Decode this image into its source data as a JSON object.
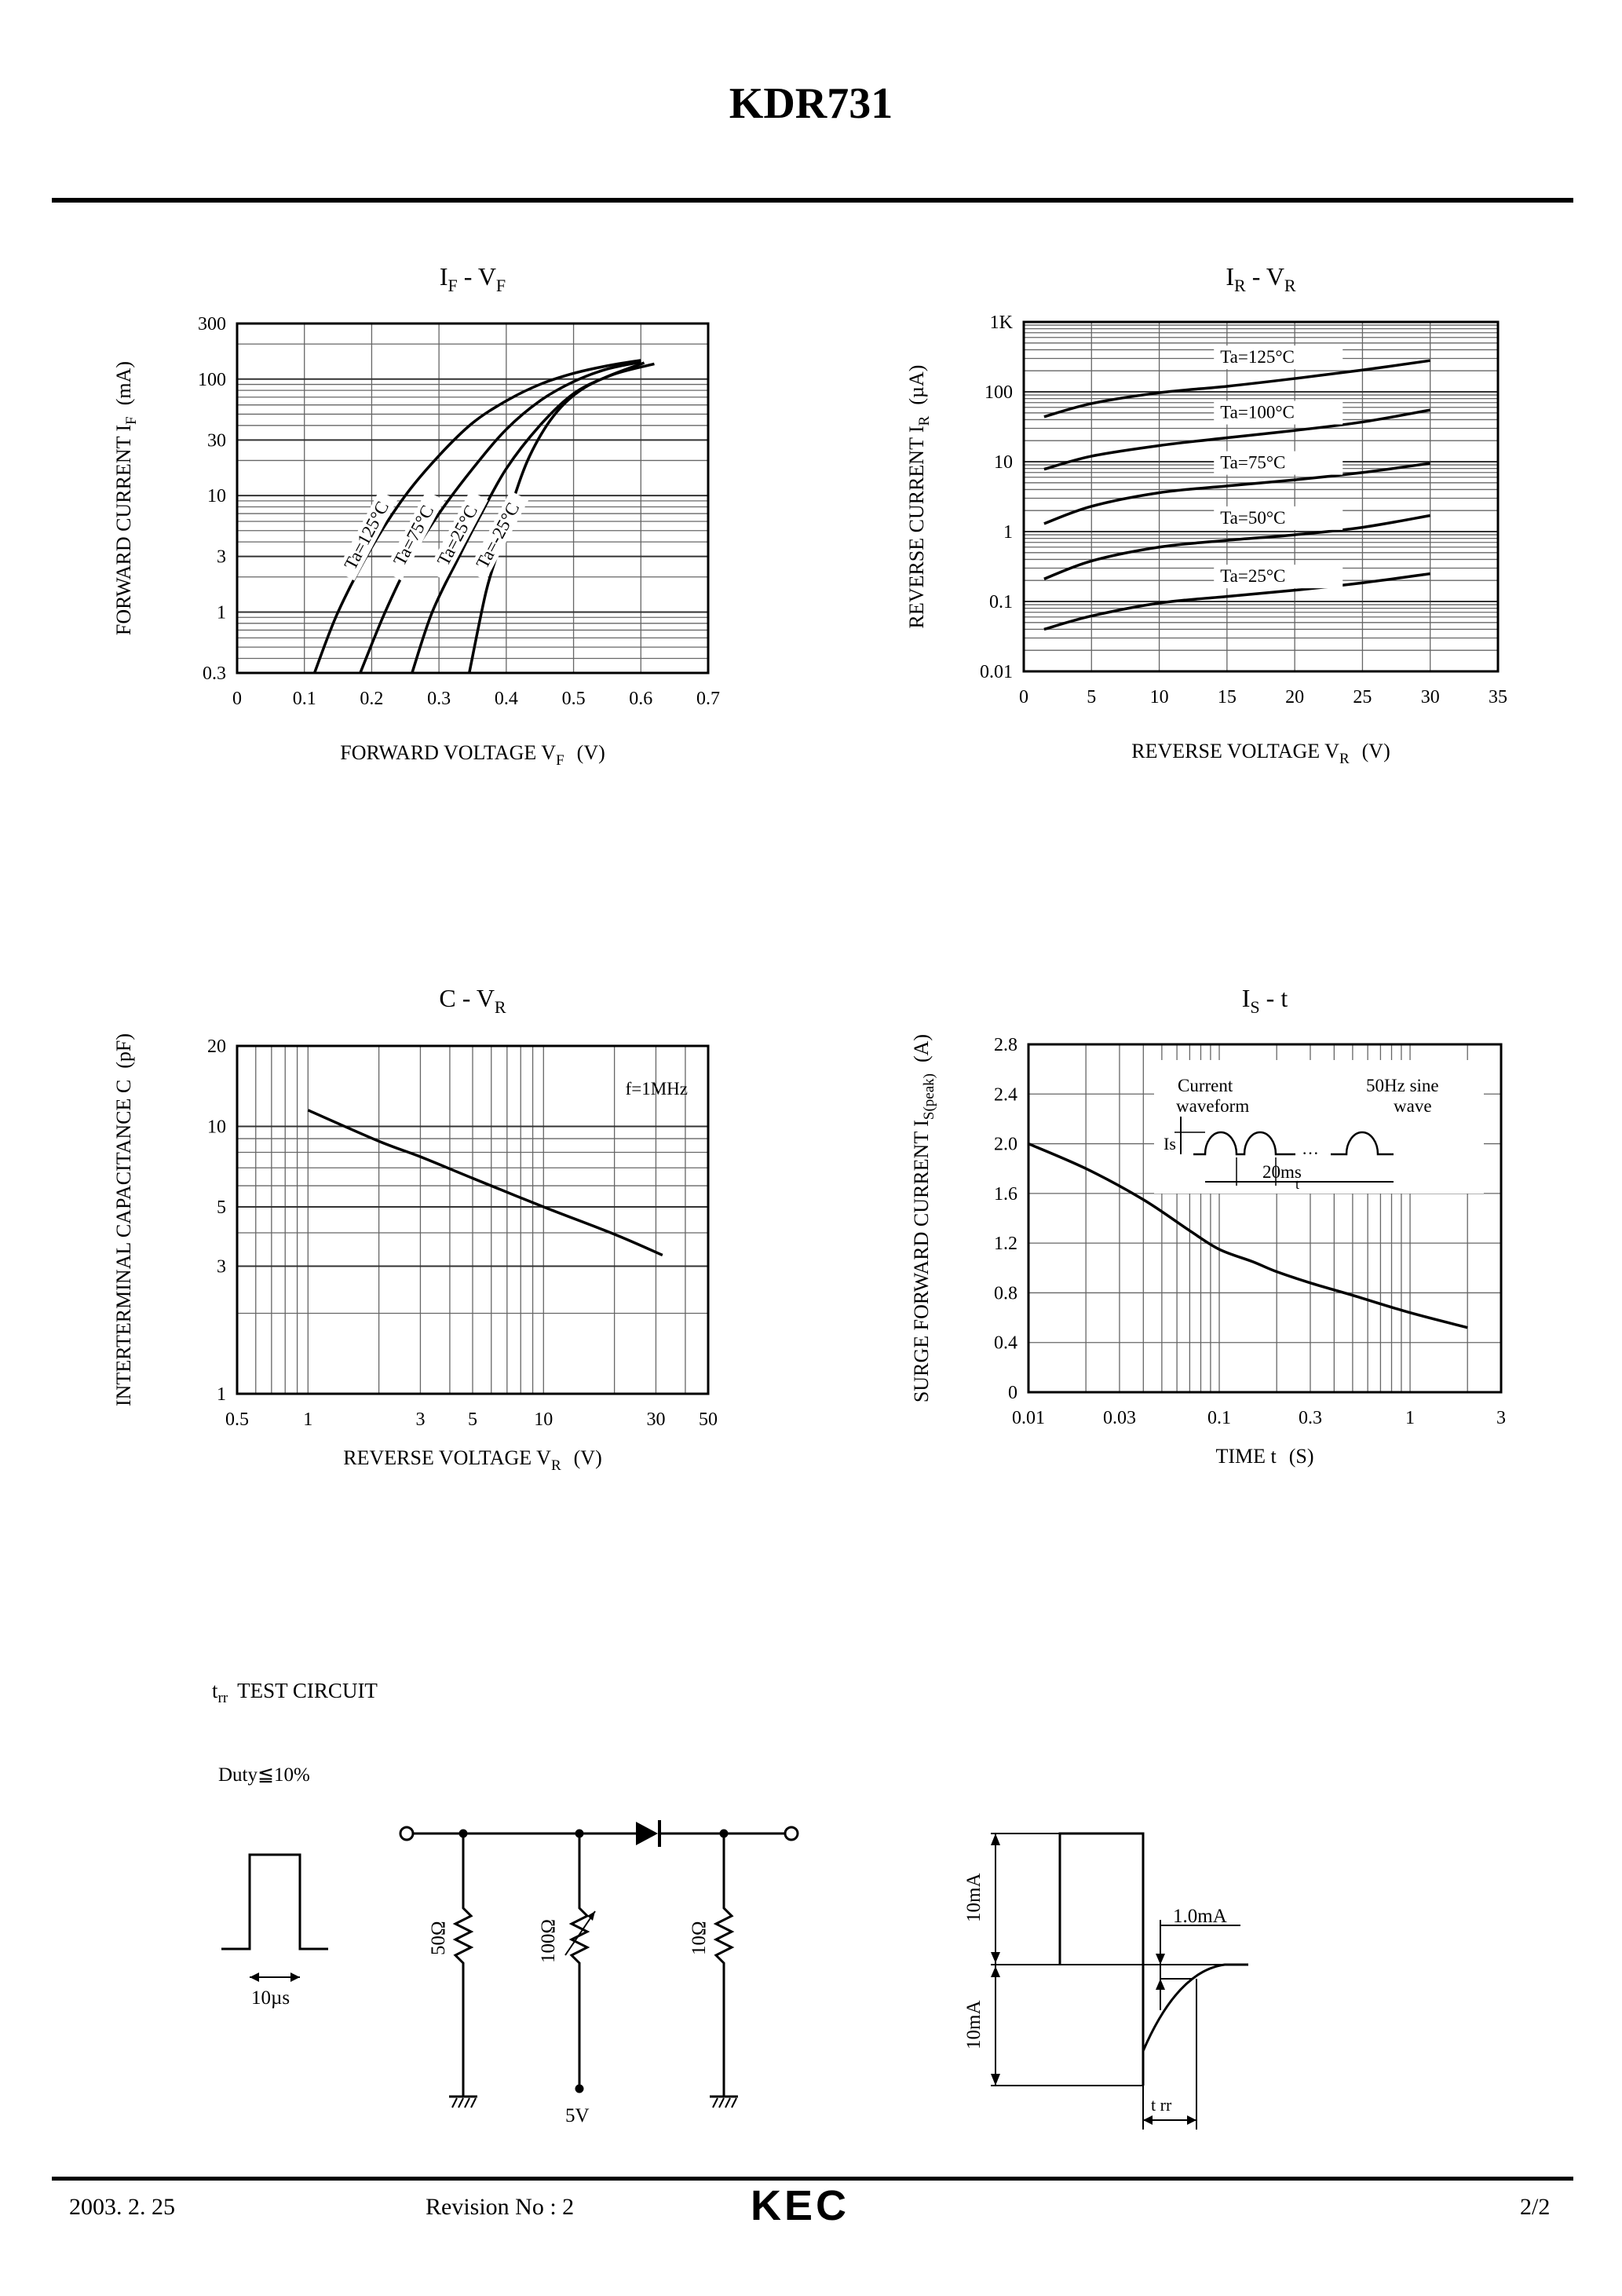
{
  "header": {
    "title": "KDR731"
  },
  "footer": {
    "date": "2003. 2. 25",
    "revision": "Revision No : 2",
    "logo": "KEC",
    "page": "2/2"
  },
  "chart_data": [
    {
      "id": "if-vf",
      "type": "line",
      "title": {
        "main": "I",
        "sub": "F",
        "sep": " - ",
        "main2": "V",
        "sub2": "F"
      },
      "xlabel": {
        "text": "FORWARD VOLTAGE V",
        "sub": "F",
        "unit": "(V)"
      },
      "ylabel": {
        "text": "FORWARD CURRENT I",
        "sub": "F",
        "unit": "(mA)"
      },
      "xlim": [
        0,
        0.7
      ],
      "ylim": [
        0.3,
        300
      ],
      "yscale": "log",
      "grid": true,
      "xticks": [
        0,
        0.1,
        0.2,
        0.3,
        0.4,
        0.5,
        0.6,
        0.7
      ],
      "xtick_labels": [
        "0",
        "0.1",
        "0.2",
        "0.3",
        "0.4",
        "0.5",
        "0.6",
        "0.7"
      ],
      "yticks": [
        0.3,
        1,
        3,
        10,
        30,
        100,
        300
      ],
      "ytick_labels": [
        "0.3",
        "1",
        "3",
        "10",
        "30",
        "100",
        "300"
      ],
      "series": [
        {
          "name": "Ta=125°C",
          "label_at": [
            0.2,
            4.3
          ],
          "x": [
            0.115,
            0.15,
            0.2,
            0.25,
            0.3,
            0.35,
            0.4,
            0.45,
            0.5,
            0.55,
            0.6
          ],
          "y": [
            0.3,
            1,
            3.6,
            10,
            22,
            42,
            65,
            90,
            112,
            130,
            145
          ]
        },
        {
          "name": "Ta=75°C",
          "label_at": [
            0.27,
            4.3
          ],
          "x": [
            0.183,
            0.22,
            0.26,
            0.3,
            0.35,
            0.4,
            0.45,
            0.5,
            0.55,
            0.6
          ],
          "y": [
            0.3,
            1,
            3,
            7,
            17,
            37,
            65,
            95,
            122,
            140
          ]
        },
        {
          "name": "Ta=25°C",
          "label_at": [
            0.335,
            4.3
          ],
          "x": [
            0.26,
            0.29,
            0.33,
            0.36,
            0.4,
            0.45,
            0.5,
            0.55,
            0.605
          ],
          "y": [
            0.3,
            1,
            3,
            6.5,
            17,
            40,
            75,
            105,
            138
          ]
        },
        {
          "name": "Ta=-25°C",
          "label_at": [
            0.395,
            4.3
          ],
          "x": [
            0.345,
            0.37,
            0.39,
            0.41,
            0.435,
            0.47,
            0.51,
            0.56,
            0.62
          ],
          "y": [
            0.3,
            1.5,
            3.6,
            9,
            22,
            48,
            80,
            110,
            135
          ]
        }
      ]
    },
    {
      "id": "ir-vr",
      "type": "line",
      "title": {
        "main": "I",
        "sub": "R",
        "sep": " - ",
        "main2": "V",
        "sub2": "R"
      },
      "xlabel": {
        "text": "REVERSE VOLTAGE V",
        "sub": "R",
        "unit": "(V)"
      },
      "ylabel": {
        "text": "REVERSE CURRENT I",
        "sub": "R",
        "unit": "(µA)"
      },
      "xlim": [
        0,
        35
      ],
      "ylim": [
        0.01,
        1000
      ],
      "yscale": "log",
      "grid": true,
      "xticks": [
        0,
        5,
        10,
        15,
        20,
        25,
        30,
        35
      ],
      "xtick_labels": [
        "0",
        "5",
        "10",
        "15",
        "20",
        "25",
        "30",
        "35"
      ],
      "yticks": [
        0.01,
        0.1,
        1,
        10,
        100,
        1000
      ],
      "ytick_labels": [
        "0.01",
        "0.1",
        "1",
        "10",
        "100",
        "1K"
      ],
      "series": [
        {
          "name": "Ta=125°C",
          "label_at": [
            14.5,
            260
          ],
          "x": [
            1.5,
            5,
            10,
            15,
            20,
            25,
            30
          ],
          "y": [
            44,
            68,
            97,
            120,
            155,
            205,
            280
          ]
        },
        {
          "name": "Ta=100°C",
          "label_at": [
            14.5,
            42
          ],
          "x": [
            1.5,
            5,
            10,
            15,
            20,
            25,
            30
          ],
          "y": [
            7.8,
            12,
            17,
            22,
            28,
            37,
            55
          ]
        },
        {
          "name": "Ta=75°C",
          "label_at": [
            14.5,
            8
          ],
          "x": [
            1.5,
            5,
            10,
            15,
            20,
            25,
            30
          ],
          "y": [
            1.3,
            2.3,
            3.6,
            4.5,
            5.5,
            7,
            9.5
          ]
        },
        {
          "name": "Ta=50°C",
          "label_at": [
            14.5,
            1.3
          ],
          "x": [
            1.5,
            5,
            10,
            15,
            20,
            25,
            30
          ],
          "y": [
            0.21,
            0.38,
            0.6,
            0.75,
            0.9,
            1.15,
            1.7
          ]
        },
        {
          "name": "Ta=25°C",
          "label_at": [
            14.5,
            0.19
          ],
          "x": [
            1.5,
            5,
            10,
            15,
            20,
            25,
            30
          ],
          "y": [
            0.04,
            0.062,
            0.095,
            0.118,
            0.145,
            0.185,
            0.25
          ]
        }
      ]
    },
    {
      "id": "c-vr",
      "type": "line",
      "title": {
        "main": "C",
        "sub": "",
        "sep": " - ",
        "main2": "V",
        "sub2": "R"
      },
      "xlabel": {
        "text": "REVERSE VOLTAGE V",
        "sub": "R",
        "unit": "(V)"
      },
      "ylabel": {
        "text": "INTERTERMINAL CAPACITANCE C",
        "sub": "",
        "unit": "(pF)"
      },
      "xlim": [
        0.5,
        50
      ],
      "xscale": "log",
      "ylim": [
        1,
        20
      ],
      "yscale": "log",
      "grid": true,
      "xticks": [
        0.5,
        1,
        3,
        5,
        10,
        30,
        50
      ],
      "xtick_labels": [
        "0.5",
        "1",
        "3",
        "5",
        "10",
        "30",
        "50"
      ],
      "yticks": [
        1,
        3,
        5,
        10,
        20
      ],
      "ytick_labels": [
        "1",
        "3",
        "5",
        "10",
        "20"
      ],
      "annotation": "f=1MHz",
      "series": [
        {
          "name": "",
          "x": [
            1,
            2,
            3,
            5,
            10,
            20,
            32
          ],
          "y": [
            11.5,
            8.8,
            7.7,
            6.4,
            5.0,
            3.95,
            3.3
          ]
        }
      ]
    },
    {
      "id": "is-t",
      "type": "line",
      "title": {
        "main": "I",
        "sub": "S",
        "sep": " - ",
        "main2": "t",
        "sub2": ""
      },
      "xlabel": {
        "text": "TIME  t",
        "sub": "",
        "unit": "(S)"
      },
      "ylabel": {
        "text": "SURGE FORWARD CURRENT I",
        "sub": "S(peak)",
        "unit": "(A)"
      },
      "xlim": [
        0.01,
        3
      ],
      "xscale": "log",
      "ylim": [
        0,
        2.8
      ],
      "grid": true,
      "xticks": [
        0.01,
        0.03,
        0.1,
        0.3,
        1,
        3
      ],
      "xtick_labels": [
        "0.01",
        "0.03",
        "0.1",
        "0.3",
        "1",
        "3"
      ],
      "yticks": [
        0,
        0.4,
        0.8,
        1.2,
        1.6,
        2.0,
        2.4,
        2.8
      ],
      "ytick_labels": [
        "0",
        "0.4",
        "0.8",
        "1.2",
        "1.6",
        "2.0",
        "2.4",
        "2.8"
      ],
      "inset": {
        "current": "Current",
        "waveform": "waveform",
        "sine": "50Hz sine",
        "wave": "wave",
        "is": "Is",
        "period": "20ms",
        "t": "t"
      },
      "series": [
        {
          "name": "",
          "x": [
            0.01,
            0.02,
            0.04,
            0.07,
            0.1,
            0.15,
            0.2,
            0.3,
            0.5,
            1,
            2
          ],
          "y": [
            2.0,
            1.8,
            1.55,
            1.3,
            1.15,
            1.05,
            0.97,
            0.88,
            0.78,
            0.64,
            0.52
          ]
        }
      ]
    }
  ],
  "test_circuit": {
    "title": "t",
    "title_sub": "rr",
    "title_rest": "TEST CIRCUIT",
    "duty": "Duty≦10%",
    "pulse_width": "10µs",
    "r1": "50Ω",
    "r2": "100Ω",
    "r3": "10Ω",
    "supply": "5V",
    "wave_top": "10mA",
    "wave_bottom": "10mA",
    "wave_level": "1.0mA",
    "trr": "t rr"
  }
}
